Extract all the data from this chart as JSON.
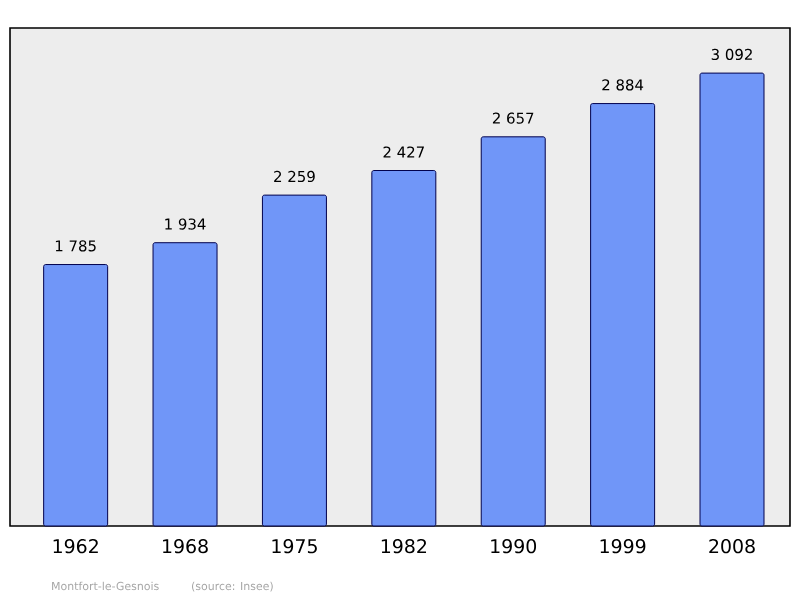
{
  "chart_data": {
    "type": "bar",
    "categories": [
      "1962",
      "1968",
      "1975",
      "1982",
      "1990",
      "1999",
      "2008"
    ],
    "values": [
      1785,
      1934,
      2259,
      2427,
      2657,
      2884,
      3092
    ],
    "value_labels": [
      "1 785",
      "1 934",
      "2 259",
      "2 427",
      "2 657",
      "2 884",
      "3 092"
    ],
    "color": "#7096f8",
    "ylim": [
      0,
      3400
    ],
    "tick_labels": "x",
    "grid": false,
    "annotations": [
      "Montfort-le-Gesnois",
      "(source: Insee)"
    ]
  }
}
